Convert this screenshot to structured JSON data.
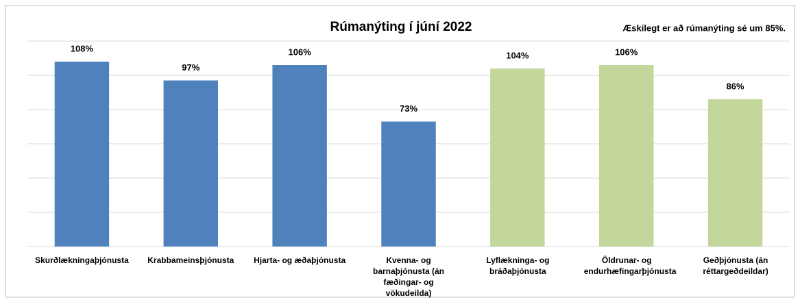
{
  "chart_data": {
    "type": "bar",
    "title": "Rúmanýting í júní 2022",
    "annotation": "Æskilegt er að rúmanýting sé um 85%.",
    "categories": [
      "Skurðlækningaþjónusta",
      "Krabbameinsþjónusta",
      "Hjarta- og æðaþjónusta",
      "Kvenna- og barnaþjónusta (án fæðingar- og vökudeilda)",
      "Lyflækninga- og bráðaþjónusta",
      "Öldrunar- og endurhæfingarþjónusta",
      "Geðþjónusta (án réttargeðdeildar)"
    ],
    "values": [
      108,
      97,
      106,
      73,
      104,
      106,
      86
    ],
    "value_labels": [
      "108%",
      "97%",
      "106%",
      "73%",
      "104%",
      "106%",
      "86%"
    ],
    "colors": [
      "#4f81bd",
      "#4f81bd",
      "#4f81bd",
      "#4f81bd",
      "#c3d69b",
      "#c3d69b",
      "#c3d69b"
    ],
    "ylim": [
      0,
      120
    ],
    "yticks": [
      0,
      20,
      40,
      60,
      80,
      100,
      120
    ],
    "grid": true
  }
}
